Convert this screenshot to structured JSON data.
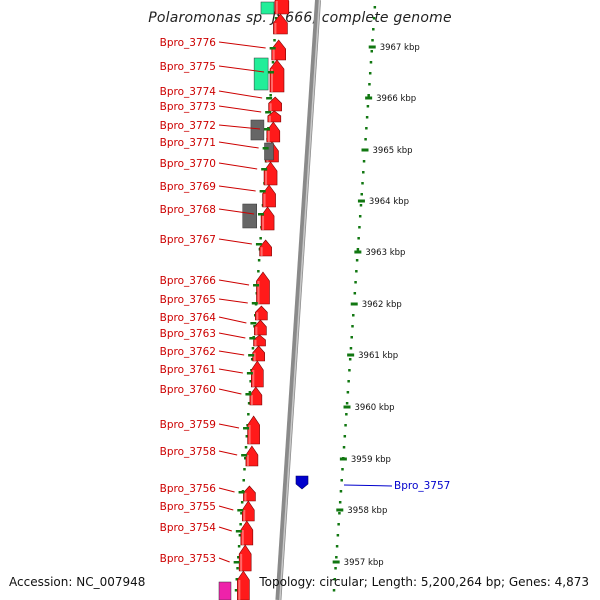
{
  "title": "Polaromonas sp. JS666, complete genome",
  "footer": {
    "accession": "Accession: NC_007948",
    "summary": "Topology: circular; Length: 5,200,264 bp; Genes: 4,873"
  },
  "colors": {
    "forward_gene": "#ff1a1a",
    "reverse_gene": "#0000cc",
    "rna_gene": "#22ee99",
    "pseudo_gene": "#666666",
    "misc_feature": "#ee22aa",
    "label": "#cc0000",
    "tick": "#117711",
    "backbone": "#8a8a8a"
  },
  "kbp_ticks": [
    "3967 kbp",
    "3966 kbp",
    "3965 kbp",
    "3964 kbp",
    "3963 kbp",
    "3962 kbp",
    "3961 kbp",
    "3960 kbp",
    "3959 kbp",
    "3958 kbp",
    "3957 kbp"
  ],
  "genes": [
    {
      "name": "Bpro_3776"
    },
    {
      "name": "Bpro_3775"
    },
    {
      "name": "Bpro_3774"
    },
    {
      "name": "Bpro_3773"
    },
    {
      "name": "Bpro_3772"
    },
    {
      "name": "Bpro_3771"
    },
    {
      "name": "Bpro_3770"
    },
    {
      "name": "Bpro_3769"
    },
    {
      "name": "Bpro_3768"
    },
    {
      "name": "Bpro_3767"
    },
    {
      "name": "Bpro_3766"
    },
    {
      "name": "Bpro_3765"
    },
    {
      "name": "Bpro_3764"
    },
    {
      "name": "Bpro_3763"
    },
    {
      "name": "Bpro_3762"
    },
    {
      "name": "Bpro_3761"
    },
    {
      "name": "Bpro_3760"
    },
    {
      "name": "Bpro_3759"
    },
    {
      "name": "Bpro_3758"
    },
    {
      "name": "Bpro_3756"
    },
    {
      "name": "Bpro_3755"
    },
    {
      "name": "Bpro_3754"
    },
    {
      "name": "Bpro_3753"
    },
    {
      "name": "Bpro_3757"
    }
  ]
}
